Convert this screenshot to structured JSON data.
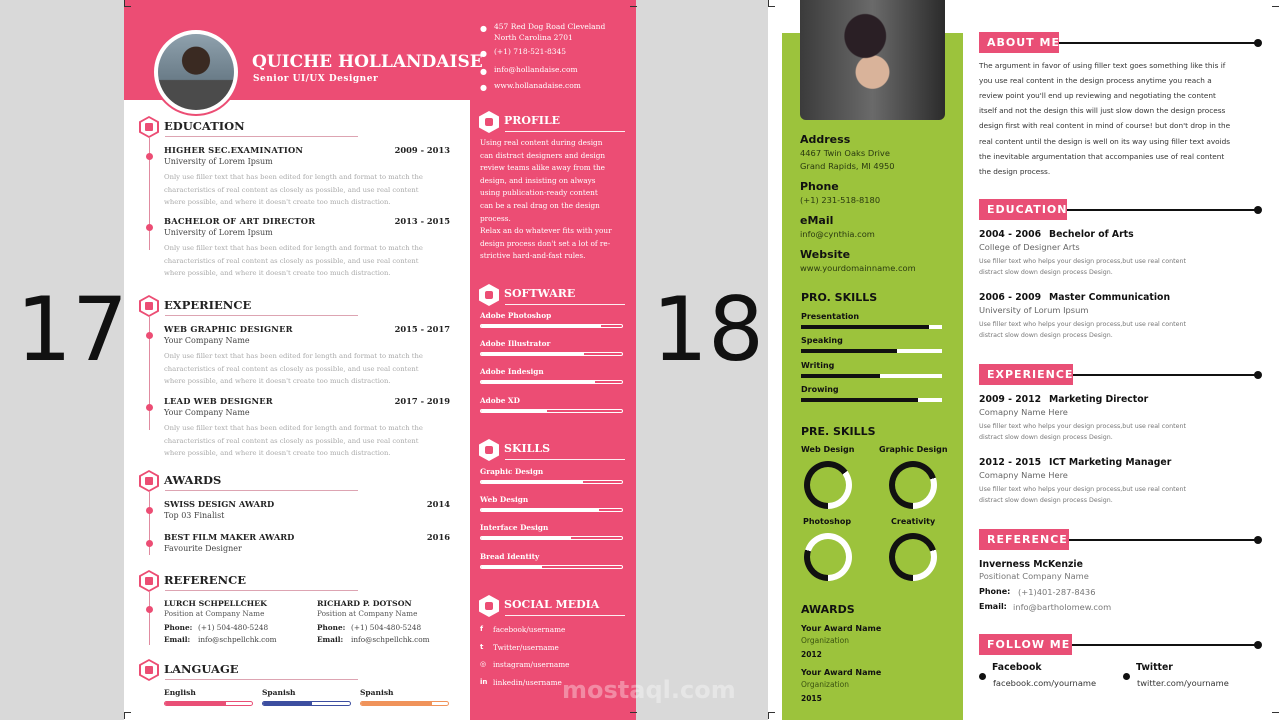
{
  "labels": {
    "left": "17",
    "right": "18"
  },
  "watermark": "mostaql.com",
  "colors": {
    "pink": "#ec4d74",
    "green": "#9cc33c",
    "label_pink": "#e94f76",
    "lang_english": "#e94f76",
    "lang_spanish1": "#3c4ea0",
    "lang_spanish2": "#f0935a"
  },
  "r17": {
    "name": "QUICHE HOLLANDAISE",
    "role": "Senior UI/UX Designer",
    "contact": {
      "address1": "457 Red Dog Road Cleveland",
      "address2": "North Carolina 2701",
      "phone": "(+1) 718-521-8345",
      "email": "info@hollandaise.com",
      "web": "www.hollanadaise.com"
    },
    "education": {
      "title": "EDUCATION",
      "items": [
        {
          "title": "HIGHER SEC.EXAMINATION",
          "date": "2009 - 2013",
          "sub": "University of Lorem Ipsum",
          "desc": [
            "Only use filler text that has been edited for length and format to match the",
            "characteristics of real content as closely as possible, and use real content",
            "where possible, and where it doesn't create too much distraction."
          ]
        },
        {
          "title": "BACHELOR OF ART DIRECTOR",
          "date": "2013 - 2015",
          "sub": "University of Lorem Ipsum",
          "desc": [
            "Only use filler text that has been edited for length and format to match the",
            "characteristics of real content as closely as possible, and use real content",
            "where possible, and where it doesn't create too much distraction."
          ]
        }
      ]
    },
    "experience": {
      "title": "EXPERIENCE",
      "items": [
        {
          "title": "WEB GRAPHIC DESIGNER",
          "date": "2015 - 2017",
          "sub": "Your Company Name",
          "desc": [
            "Only use filler text that has been edited for length and format to match the",
            "characteristics of real content as closely as possible, and use real content",
            "where possible, and where it doesn't create too much distraction."
          ]
        },
        {
          "title": "LEAD WEB DESIGNER",
          "date": "2017 - 2019",
          "sub": "Your Company Name",
          "desc": [
            "Only use filler text that has been edited for length and format to match the",
            "characteristics of real content as closely as possible, and use real content",
            "where possible, and where it doesn't create too much distraction."
          ]
        }
      ]
    },
    "awards": {
      "title": "AWARDS",
      "items": [
        {
          "title": "SWISS DESIGN AWARD",
          "date": "2014",
          "sub": "Top 03 Finalist"
        },
        {
          "title": "BEST FILM MAKER AWARD",
          "date": "2016",
          "sub": "Favourite Designer"
        }
      ]
    },
    "reference": {
      "title": "REFERENCE",
      "phone_label": "Phone:",
      "email_label": "Email:",
      "items": [
        {
          "name": "LURCH SCHPELLCHEK",
          "pos": "Position at Company Name",
          "phone": "(+1) 504-480-5248",
          "email": "info@schpellchk.com"
        },
        {
          "name": "RICHARD P. DOTSON",
          "pos": "Position at Company Name",
          "phone": "(+1) 504-480-5248",
          "email": "info@schpellchk.com"
        }
      ]
    },
    "language": {
      "title": "LANGUAGE",
      "items": [
        {
          "name": "English",
          "level": 0.7
        },
        {
          "name": "Spanish",
          "level": 0.56
        },
        {
          "name": "Spanish",
          "level": 0.82
        }
      ]
    },
    "profile": {
      "title": "PROFILE",
      "lines": [
        "Using real content during design",
        "can distract designers and design",
        "review teams alike away from the",
        "design, and insisting on always",
        "using publication-ready content",
        "can be a real drag on the design",
        "process.",
        "Relax an do whatever fits with your",
        "design process don't set a lot of re-",
        "strictive hard-and-fast rules."
      ]
    },
    "software": {
      "title": "SOFTWARE",
      "items": [
        {
          "name": "Adobe Photoshop",
          "level": 0.85
        },
        {
          "name": "Adobe Illustrator",
          "level": 0.73
        },
        {
          "name": "Adobe Indesign",
          "level": 0.81
        },
        {
          "name": "Adobe XD",
          "level": 0.47
        }
      ]
    },
    "skills": {
      "title": "SKILLS",
      "items": [
        {
          "name": "Graphic Design",
          "level": 0.72
        },
        {
          "name": "Web Design",
          "level": 0.84
        },
        {
          "name": "Interface Design",
          "level": 0.64
        },
        {
          "name": "Bread Identity",
          "level": 0.43
        }
      ]
    },
    "social": {
      "title": "SOCIAL MEDIA",
      "items": [
        {
          "icon": "facebook-icon",
          "text": "facebook/username"
        },
        {
          "icon": "twitter-icon",
          "text": "Twitter/username"
        },
        {
          "icon": "instagram-icon",
          "text": "instagram/username"
        },
        {
          "icon": "linkedin-icon",
          "text": "linkedin/username"
        }
      ]
    }
  },
  "r18": {
    "contact": [
      {
        "label": "Address",
        "lines": [
          "4467 Twin Oaks Drive",
          "Grand Rapids, MI 4950"
        ]
      },
      {
        "label": "Phone",
        "lines": [
          "(+1) 231-518-8180"
        ]
      },
      {
        "label": "eMail",
        "lines": [
          "info@cynthia.com"
        ]
      },
      {
        "label": "Website",
        "lines": [
          "www.yourdomainname.com"
        ]
      }
    ],
    "pro_skills": {
      "title": "PRO. SKILLS",
      "items": [
        {
          "name": "Presentation",
          "level": 0.91
        },
        {
          "name": "Speaking",
          "level": 0.68
        },
        {
          "name": "Writing",
          "level": 0.56
        },
        {
          "name": "Drowing",
          "level": 0.83
        }
      ]
    },
    "pre_skills": {
      "title": "PRE. SKILLS",
      "items": [
        {
          "name": "Web Design",
          "level": 0.65
        },
        {
          "name": "Graphic Design",
          "level": 0.7
        },
        {
          "name": "Photoshop",
          "level": 0.3
        },
        {
          "name": "Creativity",
          "level": 0.7
        }
      ]
    },
    "awards": {
      "title": "AWARDS",
      "items": [
        {
          "name": "Your Award Name",
          "org": "Organization",
          "year": "2012"
        },
        {
          "name": "Your Award Name",
          "org": "Organization",
          "year": "2015"
        }
      ]
    },
    "about": {
      "title": "ABOUT ME",
      "lines": [
        "The argument in favor of using filler text goes something like this if",
        "you use real content in the design process anytime you reach a",
        "review point you'll end up reviewing and negotiating the content",
        "itself and not the design this will just slow down the design process",
        "design first with real content in mind of course! but don't drop in the",
        "real content until the design is well on its way using filler text avoids",
        "the inevitable argumentation that accompanies use of real content",
        "the design process."
      ]
    },
    "education": {
      "title": "EDUCATION",
      "items": [
        {
          "date": "2004 - 2006",
          "title": "Bechelor of Arts",
          "sub": "College of Designer Arts",
          "desc": [
            "Use filler text who helps your design process,but use real content",
            "distract slow down design process Design."
          ]
        },
        {
          "date": "2006 - 2009",
          "title": "Master Communication",
          "sub": "University of Lorum Ipsum",
          "desc": [
            "Use filler text who helps your design process,but use real content",
            "distract slow down design process Design."
          ]
        }
      ]
    },
    "experience": {
      "title": "EXPERIENCE",
      "items": [
        {
          "date": "2009 - 2012",
          "title": "Marketing Director",
          "sub": "Comapny Name Here",
          "desc": [
            "Use filler text who helps your design process,but use real content",
            "distract slow down design process Design."
          ]
        },
        {
          "date": "2012 - 2015",
          "title": "ICT Marketing Manager",
          "sub": "Comapny Name Here",
          "desc": [
            "Use filler text who helps your design process,but use real content",
            "distract slow down design process Design."
          ]
        }
      ]
    },
    "reference": {
      "title": "REFERENCE",
      "name": "Inverness McKenzie",
      "pos": "Positionat Company Name",
      "phone_label": "Phone:",
      "phone": "(+1)401-287-8436",
      "email_label": "Email:",
      "email": "info@bartholomew.com"
    },
    "follow": {
      "title": "FOLLOW ME",
      "items": [
        {
          "name": "Facebook",
          "url": "facebook.com/yourname"
        },
        {
          "name": "Twitter",
          "url": "twitter.com/yourname"
        }
      ]
    }
  }
}
